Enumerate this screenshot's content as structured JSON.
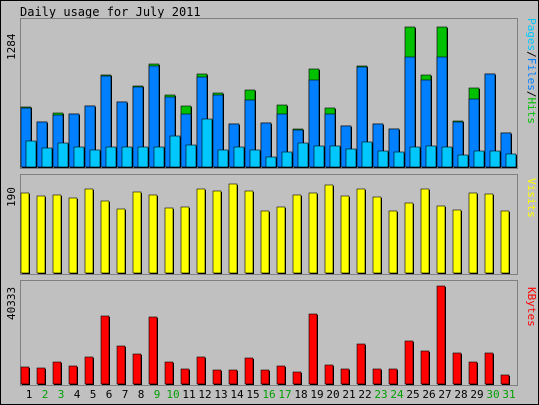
{
  "chart_data": {
    "type": "bar",
    "title": "Daily usage for July 2011",
    "categories": [
      "1",
      "2",
      "3",
      "4",
      "5",
      "6",
      "7",
      "8",
      "9",
      "10",
      "11",
      "12",
      "13",
      "14",
      "15",
      "16",
      "17",
      "18",
      "19",
      "20",
      "21",
      "22",
      "23",
      "24",
      "25",
      "26",
      "27",
      "28",
      "29",
      "30",
      "31"
    ],
    "weekend_days": [
      "2",
      "3",
      "9",
      "10",
      "16",
      "17",
      "23",
      "24",
      "30",
      "31"
    ],
    "panels": [
      {
        "name": "hits-panel",
        "max_label": "1284",
        "ylim": [
          0,
          1284
        ],
        "legend": [
          {
            "text": "Pages",
            "color": "#00c8ff"
          },
          {
            "text": "/",
            "color": "#000000"
          },
          {
            "text": "Files",
            "color": "#0080ff"
          },
          {
            "text": "/",
            "color": "#000000"
          },
          {
            "text": "Hits",
            "color": "#00c000"
          }
        ],
        "series": [
          {
            "name": "Hits",
            "color": "#00c000",
            "values": [
              535,
              405,
              480,
              475,
              540,
              820,
              580,
              720,
              915,
              640,
              545,
              825,
              660,
              385,
              685,
              395,
              555,
              335,
              870,
              530,
              365,
              900,
              385,
              340,
              1245,
              820,
              1245,
              410,
              700,
              830,
              305
            ]
          },
          {
            "name": "Files",
            "color": "#0080ff",
            "values": [
              530,
              405,
              465,
              470,
              540,
              815,
              580,
              715,
              900,
              625,
              475,
              800,
              645,
              380,
              595,
              395,
              475,
              330,
              775,
              470,
              365,
              890,
              385,
              335,
              985,
              780,
              985,
              405,
              610,
              825,
              300
            ]
          },
          {
            "name": "Pages",
            "color": "#00c8ff",
            "values": [
              230,
              170,
              210,
              175,
              150,
              175,
              175,
              180,
              175,
              280,
              195,
              430,
              155,
              180,
              155,
              90,
              135,
              215,
              185,
              185,
              160,
              225,
              145,
              130,
              175,
              185,
              180,
              110,
              145,
              145,
              120
            ]
          }
        ]
      },
      {
        "name": "visits-panel",
        "max_label": "190",
        "ylim": [
          0,
          190
        ],
        "legend": [
          {
            "text": "Visits",
            "color": "#ffff00"
          }
        ],
        "series": [
          {
            "name": "Visits",
            "color": "#ffff00",
            "values": [
              161,
              155,
              157,
              151,
              169,
              145,
              130,
              163,
              158,
              131,
              133,
              170,
              165,
              179,
              165,
              126,
              134,
              158,
              162,
              178,
              155,
              170,
              154,
              126,
              142,
              169,
              136,
              128,
              162,
              159,
              126
            ]
          }
        ]
      },
      {
        "name": "kbytes-panel",
        "max_label": "40333",
        "ylim": [
          0,
          40333
        ],
        "legend": [
          {
            "text": "KBytes",
            "color": "#ff0000"
          }
        ],
        "series": [
          {
            "name": "KBytes",
            "color": "#ff0000",
            "values": [
              7200,
              6600,
              9200,
              7500,
              11200,
              27800,
              15500,
              12300,
              27500,
              9200,
              6000,
              11200,
              5700,
              5600,
              10500,
              5700,
              7600,
              5100,
              29000,
              7700,
              6200,
              16500,
              6100,
              6100,
              17600,
              13500,
              40333,
              12800,
              8900,
              12800,
              3900
            ]
          }
        ]
      }
    ]
  }
}
